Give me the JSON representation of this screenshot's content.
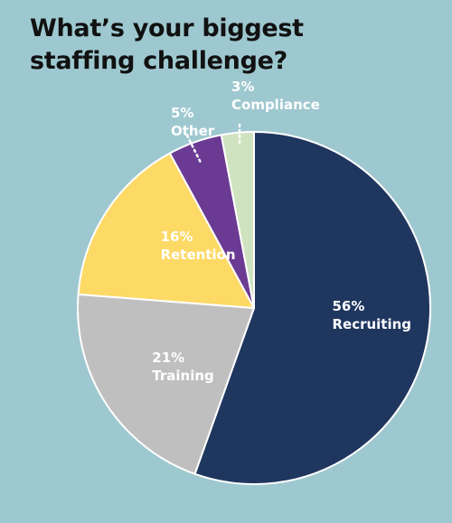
{
  "header": {
    "title_line1": "What’s your biggest",
    "title_line2": "staffing challenge?"
  },
  "chart_data": {
    "type": "pie",
    "title": "What’s your biggest staffing challenge?",
    "slices": [
      {
        "label": "Recruiting",
        "percent_label": "56%",
        "value": 56,
        "color": "#1f365f",
        "label_color": "#ffffff"
      },
      {
        "label": "Training",
        "percent_label": "21%",
        "value": 21,
        "color": "#bfbfbf",
        "label_color": "#ffffff"
      },
      {
        "label": "Retention",
        "percent_label": "16%",
        "value": 16,
        "color": "#fdd966",
        "label_color": "#ffffff"
      },
      {
        "label": "Other",
        "percent_label": "5%",
        "value": 5,
        "color": "#6b3b93",
        "label_color": "#ffffff"
      },
      {
        "label": "Compliance",
        "percent_label": "3%",
        "value": 3,
        "color": "#cfe3c0",
        "label_color": "#ffffff"
      }
    ],
    "start": "12 o'clock",
    "direction": "clockwise",
    "legend": "none"
  }
}
